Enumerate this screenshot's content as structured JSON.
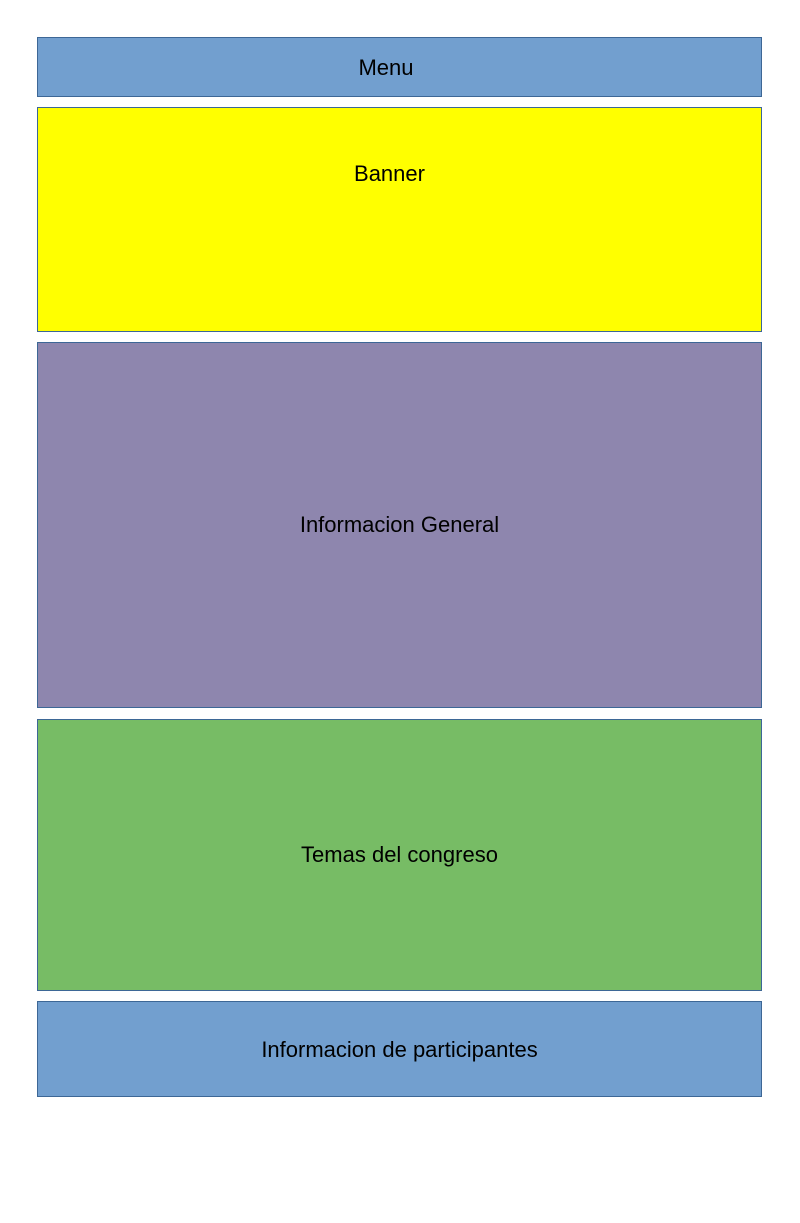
{
  "blocks": {
    "menu": {
      "label": "Menu",
      "color": "#729fcf"
    },
    "banner": {
      "label": "Banner",
      "color": "#ffff00"
    },
    "informacion_general": {
      "label": "Informacion General",
      "color": "#8e86ae"
    },
    "temas": {
      "label": "Temas del congreso",
      "color": "#77bc65"
    },
    "participantes": {
      "label": "Informacion de participantes",
      "color": "#729fcf"
    }
  }
}
